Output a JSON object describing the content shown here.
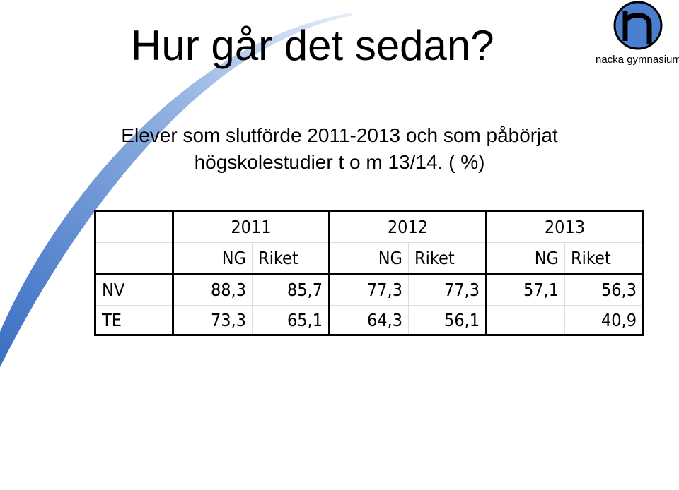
{
  "header": {
    "title": "Hur går det sedan?",
    "subtitle": [
      "Elever som slutförde 2011-2013 och som påbörjat",
      "högskolestudier t o m 13/14. ( %)"
    ]
  },
  "logo": {
    "text": "nacka gymnasium"
  },
  "table": {
    "years": [
      "2011",
      "2012",
      "2013"
    ],
    "subheaders": [
      "NG",
      "Riket",
      "NG",
      "Riket",
      "NG",
      "Riket"
    ],
    "rows": [
      [
        "NV",
        "88,3",
        "85,7",
        "77,3",
        "77,3",
        "57,1",
        "56,3"
      ],
      [
        "TE",
        "73,3",
        "65,1",
        "64,3",
        "56,1",
        null,
        "40,9"
      ]
    ]
  }
}
